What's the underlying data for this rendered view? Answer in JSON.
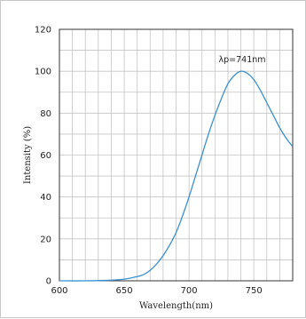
{
  "chart_data": {
    "type": "line",
    "title": "",
    "xlabel": "Wavelength(nm)",
    "ylabel": "Intensity (%)",
    "xlim": [
      600,
      780
    ],
    "ylim": [
      0,
      120
    ],
    "x_ticks": [
      600,
      650,
      700,
      750
    ],
    "y_ticks": [
      0,
      20,
      40,
      60,
      80,
      100,
      120
    ],
    "x_minor_step": 10,
    "y_minor_step": 10,
    "grid": true,
    "annotation": {
      "text": "λp=741nm",
      "x": 741,
      "y": 100
    },
    "series": [
      {
        "color": "#3a8fd0",
        "x": [
          600,
          620,
          640,
          650,
          660,
          665,
          670,
          675,
          680,
          685,
          690,
          695,
          700,
          705,
          710,
          715,
          720,
          725,
          730,
          735,
          740,
          745,
          750,
          755,
          760,
          765,
          770,
          775,
          780
        ],
        "y": [
          0,
          0,
          0.3,
          0.8,
          2,
          3,
          5,
          8,
          12,
          17,
          23,
          31,
          40,
          50,
          60,
          70,
          79,
          87,
          94,
          98,
          100,
          99,
          96,
          91,
          85,
          79,
          73,
          68,
          64
        ]
      }
    ]
  }
}
